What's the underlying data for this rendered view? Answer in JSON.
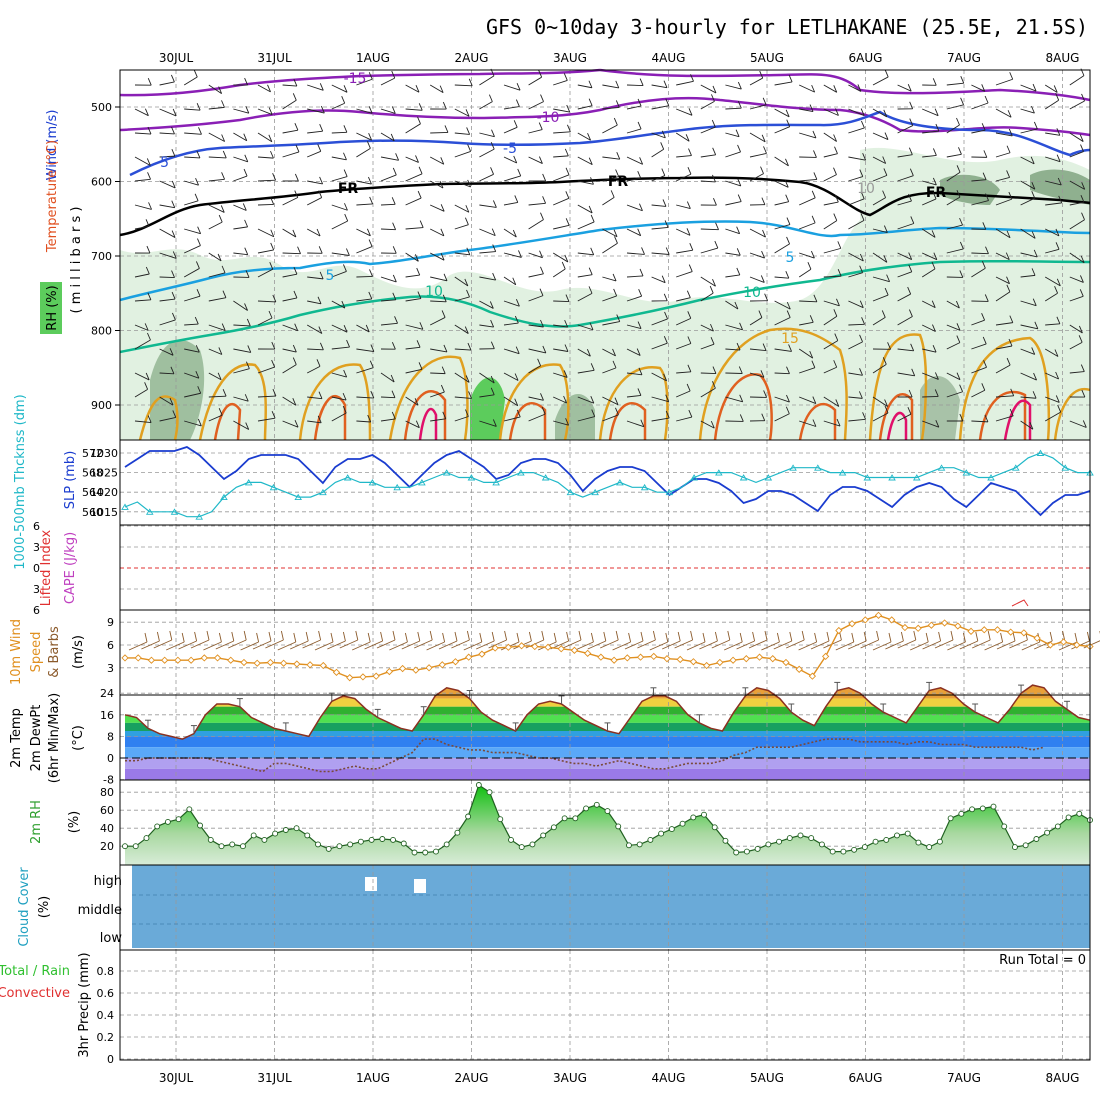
{
  "title": "GFS 0~10day 3-hourly for LETLHAKANE (25.5E, 21.5S)",
  "dates": [
    "30JUL",
    "31JUL",
    "1AUG",
    "2AUG",
    "3AUG",
    "4AUG",
    "5AUG",
    "6AUG",
    "7AUG",
    "8AUG"
  ],
  "colors": {
    "temp_neg": "#2b4fd6",
    "temp_neg15": "#8a1fb5",
    "fr": "#000000",
    "temp5": "#1aa0e0",
    "temp10": "#10b890",
    "temp15": "#e0a020",
    "temp20": "#e06020",
    "temp25": "#e0106a",
    "rh_fill": "#d8ecd8",
    "slp": "#1a3ccf",
    "thickness": "#20b8c8",
    "wind": "#e09020",
    "cloud": "#6aaad8",
    "rh2m": "#30c030"
  },
  "panels": {
    "upper": {
      "ylabel_wind": "Wind (m/s)",
      "ylabel_temp": "Temperature (°C)",
      "ylabel_rh": "RH (%)",
      "ylabel_mb": "( m i l l i b a r s )",
      "yticks": [
        "500",
        "600",
        "700",
        "800",
        "900"
      ],
      "contour_labels": [
        "-15",
        "-10",
        "-5",
        "-5",
        "FR",
        "FR",
        "FR",
        "5",
        "5",
        "10",
        "10",
        "15",
        "10"
      ]
    },
    "slp": {
      "ylabel_thick": "1000-500mb Thcknss (dm)",
      "ylabel_slp": "SLP (mb)",
      "yticks_left": [
        "572",
        "568",
        "564",
        "560"
      ],
      "yticks_right": [
        "1030",
        "1025",
        "1020",
        "1015"
      ]
    },
    "li": {
      "ylabel_li": "Lifted Index",
      "ylabel_cape": "CAPE (J/kg)",
      "yticks": [
        "6",
        "3",
        "0",
        "3",
        "6"
      ]
    },
    "wind": {
      "ylabel_a": "10m Wind",
      "ylabel_b": "Speed",
      "ylabel_c": "& Barbs",
      "ylabel_unit": "(m/s)",
      "yticks": [
        "9",
        "6",
        "3"
      ]
    },
    "temp": {
      "ylabel_a": "2m Temp",
      "ylabel_b": "2m DewPt",
      "ylabel_c": "(6hr Min/Max)",
      "ylabel_unit": "(°C)",
      "yticks": [
        "24",
        "16",
        "8",
        "0",
        "-8"
      ]
    },
    "rh": {
      "ylabel": "2m RH",
      "ylabel_unit": "(%)",
      "yticks": [
        "80",
        "60",
        "40",
        "20"
      ]
    },
    "cloud": {
      "ylabel": "Cloud Cover",
      "ylabel_unit": "(%)",
      "levels": [
        "high",
        "middle",
        "low"
      ]
    },
    "precip": {
      "ylabel_a": "Total / Rain",
      "ylabel_b": "Convective",
      "ylabel_c": "3hr Precip (mm)",
      "yticks": [
        "0.8",
        "0.6",
        "0.4",
        "0.2",
        "0"
      ],
      "run_total": "Run Total = 0"
    }
  },
  "chart_data": [
    {
      "type": "line",
      "title": "",
      "ylabel": "SLP (mb)",
      "x_step_hours": 3,
      "series": [
        {
          "name": "SLP (mb)",
          "values": [
            1025,
            1027,
            1029,
            1029,
            1029,
            1030,
            1028,
            1025,
            1022,
            1024,
            1027,
            1028,
            1028,
            1028,
            1027,
            1024,
            1021,
            1025,
            1027,
            1027,
            1028,
            1026,
            1023,
            1020,
            1023,
            1026,
            1028,
            1029,
            1027,
            1025,
            1022,
            1023,
            1026,
            1027,
            1027,
            1026,
            1023,
            1019,
            1022,
            1024,
            1025,
            1025,
            1024,
            1021,
            1018,
            1020,
            1022,
            1022,
            1021,
            1019,
            1016,
            1017,
            1019,
            1019,
            1018,
            1016,
            1014,
            1018,
            1020,
            1020,
            1019,
            1017,
            1015,
            1018,
            1020,
            1021,
            1020,
            1017,
            1015,
            1018,
            1021,
            1020,
            1019,
            1016,
            1013,
            1016,
            1018,
            1018,
            1019
          ]
        },
        {
          "name": "1000-500mb Thcknss (dm)",
          "values": [
            561,
            562,
            560,
            560,
            560,
            559,
            559,
            560,
            563,
            565,
            566,
            566,
            565,
            564,
            563,
            563,
            564,
            566,
            567,
            566,
            566,
            565,
            565,
            565,
            566,
            567,
            568,
            567,
            567,
            566,
            566,
            567,
            568,
            568,
            567,
            566,
            564,
            563,
            564,
            565,
            566,
            565,
            565,
            564,
            564,
            565,
            567,
            568,
            568,
            568,
            567,
            566,
            567,
            568,
            569,
            569,
            569,
            568,
            568,
            568,
            567,
            567,
            567,
            567,
            567,
            568,
            569,
            569,
            568,
            567,
            567,
            568,
            569,
            571,
            572,
            571,
            569,
            568,
            568
          ]
        }
      ]
    },
    {
      "type": "line",
      "title": "",
      "ylabel": "10m Wind Speed (m/s)",
      "series": [
        {
          "name": "10m Wind Speed",
          "values": [
            4.3,
            4.3,
            4.0,
            4.0,
            4.0,
            4.0,
            4.3,
            4.3,
            4.0,
            3.7,
            3.6,
            3.7,
            3.6,
            3.5,
            3.4,
            3.3,
            2.4,
            1.7,
            1.8,
            1.9,
            2.5,
            2.9,
            2.7,
            3.0,
            3.4,
            3.8,
            4.4,
            4.8,
            5.6,
            5.7,
            5.9,
            5.8,
            5.7,
            5.5,
            5.3,
            4.9,
            4.4,
            4.0,
            4.3,
            4.4,
            4.5,
            4.2,
            4.1,
            3.8,
            3.3,
            3.7,
            4.0,
            4.2,
            4.4,
            4.2,
            3.7,
            2.8,
            1.9,
            4.5,
            7.9,
            8.8,
            9.3,
            9.9,
            9.3,
            8.3,
            8.2,
            8.6,
            8.9,
            8.5,
            7.8,
            8.0,
            8.0,
            7.7,
            7.6,
            6.9,
            6.0,
            6.4,
            6.0,
            5.8
          ]
        }
      ]
    },
    {
      "type": "area",
      "title": "",
      "ylabel": "2m Temp (°C)",
      "series": [
        {
          "name": "2m Temp",
          "values": [
            16,
            15,
            11,
            9,
            8,
            7,
            9,
            16,
            20,
            20,
            19,
            15,
            13,
            11,
            10,
            9,
            8,
            15,
            21,
            23,
            22,
            18,
            15,
            13,
            11,
            10,
            16,
            23,
            26,
            25,
            22,
            17,
            14,
            12,
            10,
            16,
            20,
            21,
            20,
            17,
            14,
            12,
            10,
            9,
            15,
            21,
            23,
            23,
            21,
            16,
            13,
            11,
            10,
            17,
            23,
            26,
            25,
            22,
            17,
            14,
            12,
            19,
            25,
            26,
            24,
            20,
            17,
            15,
            13,
            19,
            25,
            26,
            24,
            20,
            17,
            15,
            13,
            18,
            24,
            27,
            26,
            21,
            18,
            15,
            14
          ]
        },
        {
          "name": "2m DewPt",
          "values": [
            -1,
            -1,
            0,
            0,
            0,
            0,
            0,
            0,
            -1,
            -2,
            -3,
            -4,
            -5,
            -2,
            -2,
            -3,
            -4,
            -5,
            -5,
            -4,
            -3,
            -4,
            -4,
            -2,
            0,
            2,
            7,
            7,
            5,
            4,
            3,
            3,
            2,
            2,
            2,
            1,
            0,
            0,
            -1,
            -2,
            -2,
            -3,
            -2,
            -1,
            -2,
            -3,
            -4,
            -4,
            -3,
            -2,
            -2,
            -2,
            -1,
            1,
            2,
            4,
            4,
            4,
            4,
            5,
            6,
            7,
            7,
            7,
            6,
            6,
            6,
            6,
            5,
            6,
            6,
            5,
            5,
            5,
            4,
            4,
            4,
            4,
            4,
            3,
            4
          ]
        }
      ]
    },
    {
      "type": "area",
      "title": "",
      "ylabel": "2m RH (%)",
      "series": [
        {
          "name": "2m RH",
          "values": [
            20,
            20,
            29,
            42,
            47,
            50,
            61,
            43,
            27,
            20,
            22,
            20,
            32,
            27,
            34,
            38,
            40,
            32,
            22,
            17,
            20,
            22,
            25,
            27,
            28,
            27,
            23,
            13,
            13,
            14,
            22,
            35,
            53,
            88,
            80,
            50,
            27,
            19,
            22,
            32,
            41,
            51,
            51,
            62,
            66,
            59,
            42,
            21,
            22,
            27,
            34,
            39,
            45,
            52,
            55,
            41,
            26,
            13,
            14,
            17,
            22,
            25,
            29,
            32,
            29,
            22,
            14,
            14,
            16,
            19,
            25,
            27,
            32,
            34,
            24,
            19,
            25,
            51,
            56,
            61,
            62,
            64,
            42,
            19,
            21,
            28,
            35,
            42,
            52,
            56,
            49
          ]
        }
      ]
    }
  ]
}
